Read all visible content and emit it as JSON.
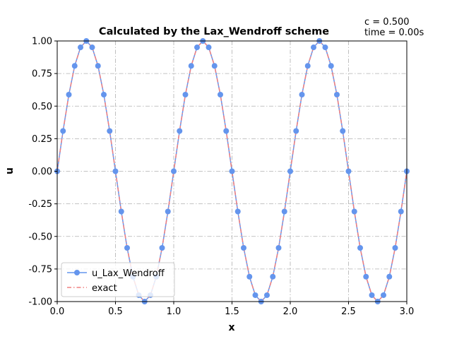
{
  "chart_data": {
    "type": "line",
    "title": "Calculated by the Lax_Wendroff scheme",
    "annotations": [
      "c = 0.500",
      "time = 0.00s"
    ],
    "xlabel": "x",
    "ylabel": "u",
    "xlim": [
      0,
      3
    ],
    "ylim": [
      -1,
      1
    ],
    "xticks": [
      "0.0",
      "0.5",
      "1.0",
      "1.5",
      "2.0",
      "2.5",
      "3.0"
    ],
    "yticks": [
      "-1.00",
      "-0.75",
      "-0.50",
      "-0.25",
      "0.00",
      "0.25",
      "0.50",
      "0.75",
      "1.00"
    ],
    "grid": true,
    "legend": "lower-left",
    "series": [
      {
        "name": "u_Lax_Wendroff",
        "style": "solid line with circle markers",
        "color": "#6495ed",
        "x": [
          0.0,
          0.05,
          0.1,
          0.15,
          0.2,
          0.25,
          0.3,
          0.35,
          0.4,
          0.45,
          0.5,
          0.55,
          0.6,
          0.65,
          0.7,
          0.75,
          0.8,
          0.85,
          0.9,
          0.95,
          1.0,
          1.05,
          1.1,
          1.15,
          1.2,
          1.25,
          1.3,
          1.35,
          1.4,
          1.45,
          1.5,
          1.55,
          1.6,
          1.65,
          1.7,
          1.75,
          1.8,
          1.85,
          1.9,
          1.95,
          2.0,
          2.05,
          2.1,
          2.15,
          2.2,
          2.25,
          2.3,
          2.35,
          2.4,
          2.45,
          2.5,
          2.55,
          2.6,
          2.65,
          2.7,
          2.75,
          2.8,
          2.85,
          2.9,
          2.95,
          3.0
        ],
        "y": [
          0.0,
          0.309,
          0.588,
          0.809,
          0.951,
          1.0,
          0.951,
          0.809,
          0.588,
          0.309,
          0.0,
          -0.309,
          -0.588,
          -0.809,
          -0.951,
          -1.0,
          -0.951,
          -0.809,
          -0.588,
          -0.309,
          0.0,
          0.309,
          0.588,
          0.809,
          0.951,
          1.0,
          0.951,
          0.809,
          0.588,
          0.309,
          0.0,
          -0.309,
          -0.588,
          -0.809,
          -0.951,
          -1.0,
          -0.951,
          -0.809,
          -0.588,
          -0.309,
          0.0,
          0.309,
          0.588,
          0.809,
          0.951,
          1.0,
          0.951,
          0.809,
          0.588,
          0.309,
          0.0,
          -0.309,
          -0.588,
          -0.809,
          -0.951,
          -1.0,
          -0.951,
          -0.809,
          -0.588,
          -0.309,
          0.0
        ]
      },
      {
        "name": "exact",
        "style": "dash-dot line",
        "color": "#f08080",
        "x": [
          0.0,
          0.05,
          0.1,
          0.15,
          0.2,
          0.25,
          0.3,
          0.35,
          0.4,
          0.45,
          0.5,
          0.55,
          0.6,
          0.65,
          0.7,
          0.75,
          0.8,
          0.85,
          0.9,
          0.95,
          1.0,
          1.05,
          1.1,
          1.15,
          1.2,
          1.25,
          1.3,
          1.35,
          1.4,
          1.45,
          1.5,
          1.55,
          1.6,
          1.65,
          1.7,
          1.75,
          1.8,
          1.85,
          1.9,
          1.95,
          2.0,
          2.05,
          2.1,
          2.15,
          2.2,
          2.25,
          2.3,
          2.35,
          2.4,
          2.45,
          2.5,
          2.55,
          2.6,
          2.65,
          2.7,
          2.75,
          2.8,
          2.85,
          2.9,
          2.95,
          3.0
        ],
        "y": [
          0.0,
          0.309,
          0.588,
          0.809,
          0.951,
          1.0,
          0.951,
          0.809,
          0.588,
          0.309,
          0.0,
          -0.309,
          -0.588,
          -0.809,
          -0.951,
          -1.0,
          -0.951,
          -0.809,
          -0.588,
          -0.309,
          0.0,
          0.309,
          0.588,
          0.809,
          0.951,
          1.0,
          0.951,
          0.809,
          0.588,
          0.309,
          0.0,
          -0.309,
          -0.588,
          -0.809,
          -0.951,
          -1.0,
          -0.951,
          -0.809,
          -0.588,
          -0.309,
          0.0,
          0.309,
          0.588,
          0.809,
          0.951,
          1.0,
          0.951,
          0.809,
          0.588,
          0.309,
          0.0,
          -0.309,
          -0.588,
          -0.809,
          -0.951,
          -1.0,
          -0.951,
          -0.809,
          -0.588,
          -0.309,
          0.0
        ]
      }
    ]
  }
}
